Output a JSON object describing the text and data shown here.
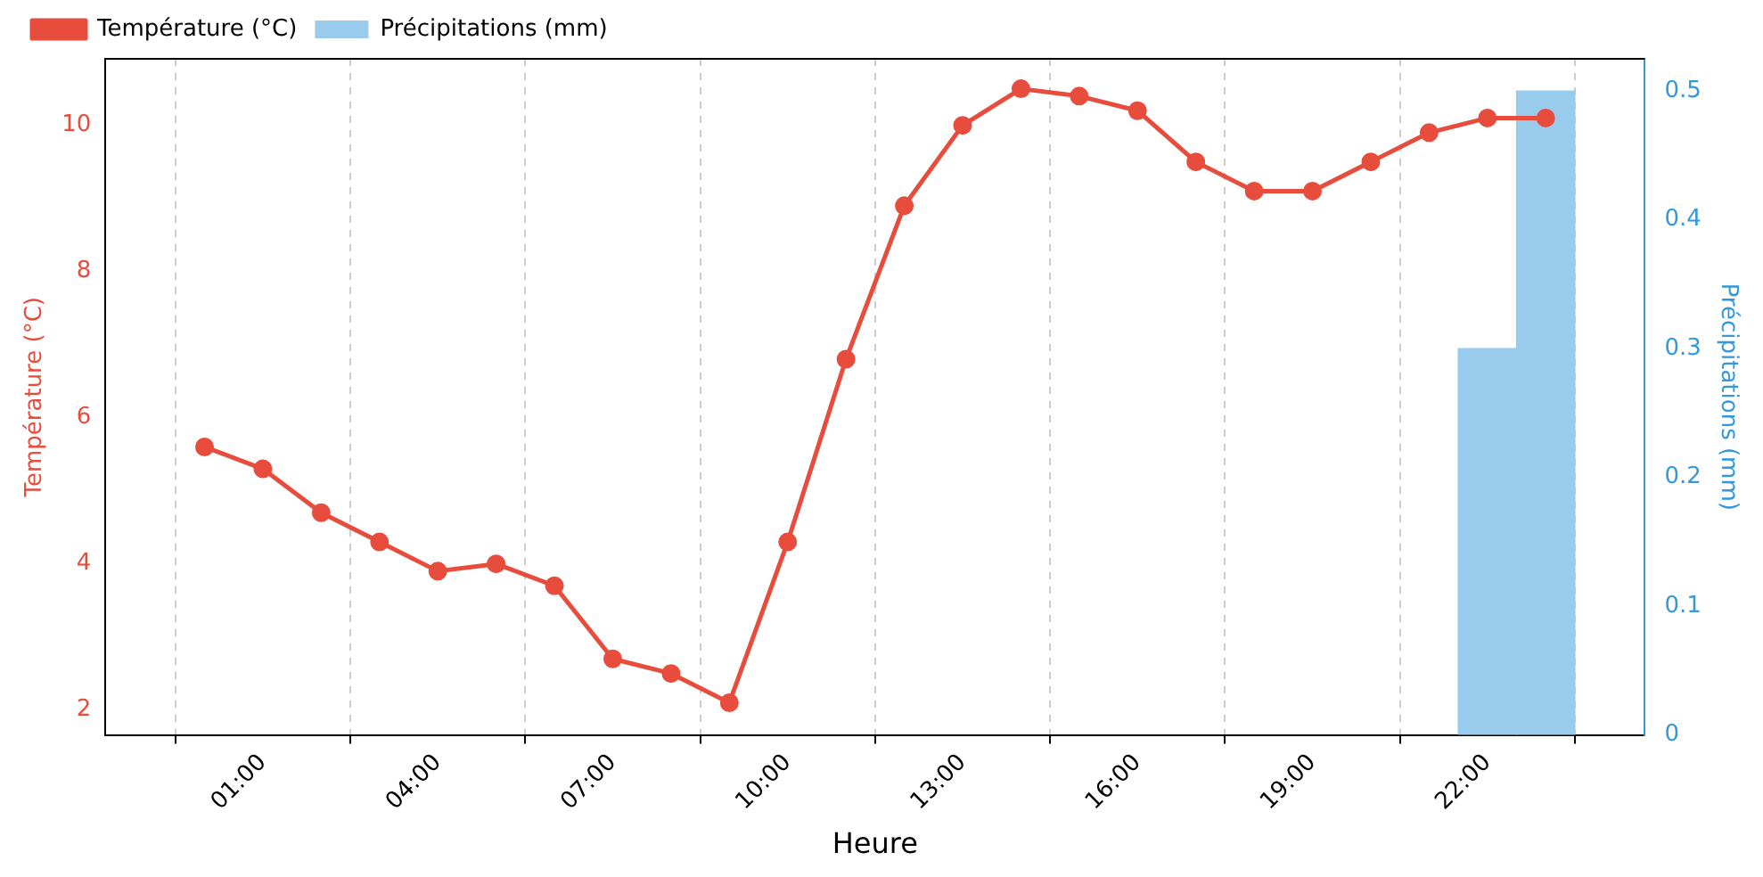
{
  "chart_data": {
    "type": "line",
    "xlabel": "Heure",
    "ylabel": "Température (°C)",
    "y2label": "Précipitations (mm)",
    "x": [
      0,
      1,
      2,
      3,
      4,
      5,
      6,
      7,
      8,
      9,
      10,
      11,
      12,
      13,
      14,
      15,
      16,
      17,
      18,
      19,
      20,
      21,
      22,
      23
    ],
    "series": [
      {
        "name": "Température (°C)",
        "color": "#e74c3c",
        "values": [
          5.6,
          5.3,
          4.7,
          4.3,
          3.9,
          4.0,
          3.7,
          2.7,
          2.5,
          2.1,
          4.3,
          6.8,
          8.9,
          10.0,
          10.5,
          10.4,
          10.2,
          9.5,
          9.1,
          9.1,
          9.5,
          9.9,
          10.1,
          10.1
        ]
      },
      {
        "name": "Précipitations (mm)",
        "type": "bar",
        "axis": "y2",
        "color": "#99cbed",
        "x": [
          22,
          23
        ],
        "values": [
          0.3,
          0.5
        ]
      }
    ],
    "xlim": [
      -1.7,
      24.7
    ],
    "xticks": [
      {
        "value": 1,
        "label": "01:00"
      },
      {
        "value": 4,
        "label": "04:00"
      },
      {
        "value": 7,
        "label": "07:00"
      },
      {
        "value": 10,
        "label": "10:00"
      },
      {
        "value": 13,
        "label": "13:00"
      },
      {
        "value": 16,
        "label": "16:00"
      },
      {
        "value": 19,
        "label": "19:00"
      },
      {
        "value": 22,
        "label": "22:00"
      }
    ],
    "ylim": [
      1.66,
      10.91
    ],
    "yticks": [
      2,
      4,
      6,
      8,
      10
    ],
    "y2lim": [
      0,
      0.525
    ],
    "y2ticks": [
      0.0,
      0.1,
      0.2,
      0.3,
      0.4,
      0.5
    ],
    "grid": "x",
    "legend": "top left",
    "marker": "circle",
    "line_style": "solid"
  }
}
